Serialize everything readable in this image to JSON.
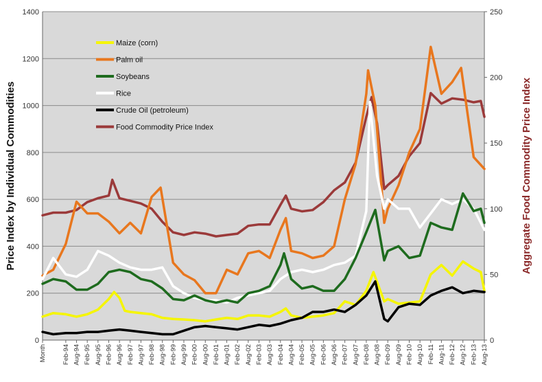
{
  "chart_data": {
    "type": "line",
    "title": "",
    "ylabel": "Price Index by Individual Commodities",
    "y2label": "Aggregate Food Commodity Price Index",
    "ylim": [
      0,
      1400
    ],
    "y2lim": [
      0,
      250
    ],
    "yticks": [
      0,
      200,
      400,
      600,
      800,
      1000,
      1200,
      1400
    ],
    "y2ticks": [
      0,
      50,
      100,
      150,
      200,
      250
    ],
    "x_start": "Jan-93",
    "x_end": "Aug-13",
    "x_first_label": "Month",
    "x_tick_labels": [
      "Month",
      "Feb-94",
      "Aug-94",
      "Feb-95",
      "Aug-95",
      "Feb-96",
      "Aug-96",
      "Feb-97",
      "Aug-97",
      "Feb-98",
      "Aug-98",
      "Feb-99",
      "Aug-99",
      "Feb-00",
      "Aug-00",
      "Feb-01",
      "Aug-01",
      "Feb-02",
      "Aug-02",
      "Feb-03",
      "Aug-03",
      "Feb-04",
      "Aug-04",
      "Feb-05",
      "Aug-05",
      "Feb-06",
      "Aug-06",
      "Feb-07",
      "Aug-07",
      "Feb-08",
      "Aug-08",
      "Feb-09",
      "Aug-09",
      "Feb-10",
      "Aug-10",
      "Feb-11",
      "Aug-11",
      "Feb-12",
      "Aug-12",
      "Feb-13",
      "Aug-13"
    ],
    "grid": "horizontal",
    "background": "#d9d9d9",
    "legend_position": "upper-left",
    "series": [
      {
        "name": "Maize (corn)",
        "axis": "left",
        "color": "#f5f500",
        "points": [
          [
            "Jan-93",
            100
          ],
          [
            "Jul-93",
            115
          ],
          [
            "Feb-94",
            110
          ],
          [
            "Aug-94",
            100
          ],
          [
            "Feb-95",
            110
          ],
          [
            "Aug-95",
            130
          ],
          [
            "Feb-96",
            175
          ],
          [
            "May-96",
            205
          ],
          [
            "Aug-96",
            180
          ],
          [
            "Nov-96",
            125
          ],
          [
            "Feb-97",
            120
          ],
          [
            "Aug-97",
            115
          ],
          [
            "Feb-98",
            110
          ],
          [
            "Aug-98",
            95
          ],
          [
            "Feb-99",
            90
          ],
          [
            "Aug-99",
            88
          ],
          [
            "Feb-00",
            85
          ],
          [
            "Aug-00",
            80
          ],
          [
            "Feb-01",
            88
          ],
          [
            "Aug-01",
            95
          ],
          [
            "Feb-02",
            90
          ],
          [
            "Aug-02",
            105
          ],
          [
            "Feb-03",
            105
          ],
          [
            "Aug-03",
            100
          ],
          [
            "Feb-04",
            120
          ],
          [
            "May-04",
            135
          ],
          [
            "Aug-04",
            105
          ],
          [
            "Feb-05",
            95
          ],
          [
            "Aug-05",
            100
          ],
          [
            "Feb-06",
            105
          ],
          [
            "Aug-06",
            115
          ],
          [
            "Feb-07",
            165
          ],
          [
            "Aug-07",
            150
          ],
          [
            "Feb-08",
            210
          ],
          [
            "Jun-08",
            290
          ],
          [
            "Dec-08",
            165
          ],
          [
            "Feb-09",
            175
          ],
          [
            "Aug-09",
            155
          ],
          [
            "Feb-10",
            160
          ],
          [
            "Aug-10",
            165
          ],
          [
            "Feb-11",
            280
          ],
          [
            "Aug-11",
            320
          ],
          [
            "Feb-12",
            275
          ],
          [
            "Aug-12",
            335
          ],
          [
            "Feb-13",
            305
          ],
          [
            "Jun-13",
            290
          ],
          [
            "Aug-13",
            210
          ]
        ]
      },
      {
        "name": "Palm oil",
        "axis": "left",
        "color": "#e8771e",
        "points": [
          [
            "Jan-93",
            275
          ],
          [
            "Jul-93",
            300
          ],
          [
            "Feb-94",
            410
          ],
          [
            "Aug-94",
            590
          ],
          [
            "Feb-95",
            540
          ],
          [
            "Aug-95",
            540
          ],
          [
            "Feb-96",
            505
          ],
          [
            "Aug-96",
            455
          ],
          [
            "Feb-97",
            500
          ],
          [
            "Aug-97",
            455
          ],
          [
            "Feb-98",
            610
          ],
          [
            "Jul-98",
            650
          ],
          [
            "Feb-99",
            330
          ],
          [
            "Aug-99",
            280
          ],
          [
            "Feb-00",
            255
          ],
          [
            "Aug-00",
            200
          ],
          [
            "Feb-01",
            200
          ],
          [
            "Aug-01",
            300
          ],
          [
            "Feb-02",
            280
          ],
          [
            "Aug-02",
            370
          ],
          [
            "Feb-03",
            380
          ],
          [
            "Aug-03",
            350
          ],
          [
            "Feb-04",
            470
          ],
          [
            "May-04",
            520
          ],
          [
            "Aug-04",
            380
          ],
          [
            "Feb-05",
            370
          ],
          [
            "Aug-05",
            350
          ],
          [
            "Feb-06",
            360
          ],
          [
            "Aug-06",
            400
          ],
          [
            "Feb-07",
            600
          ],
          [
            "Aug-07",
            750
          ],
          [
            "Feb-08",
            1050
          ],
          [
            "Mar-08",
            1150
          ],
          [
            "Jul-08",
            1000
          ],
          [
            "Dec-08",
            500
          ],
          [
            "Feb-09",
            560
          ],
          [
            "Aug-09",
            660
          ],
          [
            "Feb-10",
            800
          ],
          [
            "Aug-10",
            900
          ],
          [
            "Feb-11",
            1250
          ],
          [
            "Aug-11",
            1050
          ],
          [
            "Feb-12",
            1100
          ],
          [
            "Jul-12",
            1160
          ],
          [
            "Feb-13",
            780
          ],
          [
            "Aug-13",
            730
          ]
        ]
      },
      {
        "name": "Soybeans",
        "axis": "left",
        "color": "#1e6b1e",
        "points": [
          [
            "Jan-93",
            240
          ],
          [
            "Jul-93",
            260
          ],
          [
            "Feb-94",
            250
          ],
          [
            "Aug-94",
            215
          ],
          [
            "Feb-95",
            215
          ],
          [
            "Aug-95",
            240
          ],
          [
            "Feb-96",
            290
          ],
          [
            "Aug-96",
            300
          ],
          [
            "Feb-97",
            290
          ],
          [
            "Aug-97",
            260
          ],
          [
            "Feb-98",
            250
          ],
          [
            "Aug-98",
            220
          ],
          [
            "Feb-99",
            175
          ],
          [
            "Aug-99",
            170
          ],
          [
            "Feb-00",
            190
          ],
          [
            "Aug-00",
            170
          ],
          [
            "Feb-01",
            160
          ],
          [
            "Aug-01",
            170
          ],
          [
            "Feb-02",
            160
          ],
          [
            "Aug-02",
            200
          ],
          [
            "Feb-03",
            210
          ],
          [
            "Aug-03",
            230
          ],
          [
            "Feb-04",
            320
          ],
          [
            "Apr-04",
            370
          ],
          [
            "Aug-04",
            260
          ],
          [
            "Feb-05",
            220
          ],
          [
            "Aug-05",
            230
          ],
          [
            "Feb-06",
            210
          ],
          [
            "Aug-06",
            210
          ],
          [
            "Feb-07",
            260
          ],
          [
            "Aug-07",
            350
          ],
          [
            "Feb-08",
            460
          ],
          [
            "Jul-08",
            555
          ],
          [
            "Dec-08",
            340
          ],
          [
            "Feb-09",
            380
          ],
          [
            "Aug-09",
            400
          ],
          [
            "Feb-10",
            350
          ],
          [
            "Aug-10",
            360
          ],
          [
            "Feb-11",
            500
          ],
          [
            "Aug-11",
            480
          ],
          [
            "Feb-12",
            470
          ],
          [
            "Aug-12",
            625
          ],
          [
            "Feb-13",
            550
          ],
          [
            "Jun-13",
            560
          ],
          [
            "Aug-13",
            500
          ]
        ]
      },
      {
        "name": "Rice",
        "axis": "left",
        "color": "#ffffff",
        "points": [
          [
            "Jan-93",
            260
          ],
          [
            "Jul-93",
            350
          ],
          [
            "Feb-94",
            280
          ],
          [
            "Aug-94",
            270
          ],
          [
            "Feb-95",
            300
          ],
          [
            "Aug-95",
            380
          ],
          [
            "Feb-96",
            360
          ],
          [
            "Aug-96",
            330
          ],
          [
            "Feb-97",
            310
          ],
          [
            "Aug-97",
            300
          ],
          [
            "Feb-98",
            300
          ],
          [
            "Aug-98",
            310
          ],
          [
            "Feb-99",
            230
          ],
          [
            "Aug-99",
            200
          ],
          [
            "Feb-00",
            180
          ],
          [
            "Aug-00",
            170
          ],
          [
            "Feb-01",
            170
          ],
          [
            "Aug-01",
            160
          ],
          [
            "Feb-02",
            180
          ],
          [
            "Aug-02",
            190
          ],
          [
            "Feb-03",
            200
          ],
          [
            "Aug-03",
            210
          ],
          [
            "Feb-04",
            260
          ],
          [
            "Aug-04",
            290
          ],
          [
            "Feb-05",
            300
          ],
          [
            "Aug-05",
            290
          ],
          [
            "Feb-06",
            300
          ],
          [
            "Aug-06",
            320
          ],
          [
            "Feb-07",
            330
          ],
          [
            "Aug-07",
            360
          ],
          [
            "Feb-08",
            550
          ],
          [
            "Apr-08",
            1015
          ],
          [
            "Aug-08",
            700
          ],
          [
            "Dec-08",
            560
          ],
          [
            "Feb-09",
            600
          ],
          [
            "Aug-09",
            560
          ],
          [
            "Feb-10",
            560
          ],
          [
            "Aug-10",
            480
          ],
          [
            "Feb-11",
            540
          ],
          [
            "Aug-11",
            600
          ],
          [
            "Feb-12",
            580
          ],
          [
            "Aug-12",
            600
          ],
          [
            "Feb-13",
            560
          ],
          [
            "Aug-13",
            470
          ]
        ]
      },
      {
        "name": "Crude Oil (petroleum)",
        "axis": "left",
        "color": "#000000",
        "points": [
          [
            "Jan-93",
            35
          ],
          [
            "Jul-93",
            25
          ],
          [
            "Feb-94",
            30
          ],
          [
            "Aug-94",
            30
          ],
          [
            "Feb-95",
            35
          ],
          [
            "Aug-95",
            35
          ],
          [
            "Feb-96",
            40
          ],
          [
            "Aug-96",
            45
          ],
          [
            "Feb-97",
            40
          ],
          [
            "Aug-97",
            35
          ],
          [
            "Feb-98",
            30
          ],
          [
            "Aug-98",
            25
          ],
          [
            "Feb-99",
            25
          ],
          [
            "Aug-99",
            40
          ],
          [
            "Feb-00",
            55
          ],
          [
            "Aug-00",
            60
          ],
          [
            "Feb-01",
            55
          ],
          [
            "Aug-01",
            50
          ],
          [
            "Feb-02",
            45
          ],
          [
            "Aug-02",
            55
          ],
          [
            "Feb-03",
            65
          ],
          [
            "Aug-03",
            60
          ],
          [
            "Feb-04",
            70
          ],
          [
            "Aug-04",
            85
          ],
          [
            "Feb-05",
            95
          ],
          [
            "Aug-05",
            120
          ],
          [
            "Feb-06",
            120
          ],
          [
            "Aug-06",
            130
          ],
          [
            "Feb-07",
            120
          ],
          [
            "Aug-07",
            150
          ],
          [
            "Feb-08",
            190
          ],
          [
            "Jul-08",
            250
          ],
          [
            "Dec-08",
            90
          ],
          [
            "Feb-09",
            80
          ],
          [
            "Aug-09",
            140
          ],
          [
            "Feb-10",
            155
          ],
          [
            "Aug-10",
            150
          ],
          [
            "Feb-11",
            190
          ],
          [
            "Aug-11",
            210
          ],
          [
            "Feb-12",
            225
          ],
          [
            "Aug-12",
            200
          ],
          [
            "Feb-13",
            210
          ],
          [
            "Aug-13",
            205
          ]
        ]
      },
      {
        "name": "Food Commodity Price Index",
        "axis": "right",
        "color": "#9b3a3a",
        "points": [
          [
            "Jan-93",
            95
          ],
          [
            "Jul-93",
            97
          ],
          [
            "Feb-94",
            97
          ],
          [
            "Aug-94",
            99
          ],
          [
            "Feb-95",
            105
          ],
          [
            "Aug-95",
            108
          ],
          [
            "Feb-96",
            110
          ],
          [
            "Apr-96",
            122
          ],
          [
            "Aug-96",
            108
          ],
          [
            "Feb-97",
            106
          ],
          [
            "Aug-97",
            104
          ],
          [
            "Feb-98",
            100
          ],
          [
            "Aug-98",
            90
          ],
          [
            "Feb-99",
            82
          ],
          [
            "Aug-99",
            80
          ],
          [
            "Feb-00",
            82
          ],
          [
            "Aug-00",
            81
          ],
          [
            "Feb-01",
            79
          ],
          [
            "Aug-01",
            80
          ],
          [
            "Feb-02",
            81
          ],
          [
            "Aug-02",
            87
          ],
          [
            "Feb-03",
            88
          ],
          [
            "Aug-03",
            88
          ],
          [
            "Feb-04",
            103
          ],
          [
            "May-04",
            110
          ],
          [
            "Aug-04",
            100
          ],
          [
            "Feb-05",
            98
          ],
          [
            "Aug-05",
            99
          ],
          [
            "Feb-06",
            105
          ],
          [
            "Aug-06",
            114
          ],
          [
            "Feb-07",
            120
          ],
          [
            "Aug-07",
            135
          ],
          [
            "Feb-08",
            170
          ],
          [
            "May-08",
            185
          ],
          [
            "Aug-08",
            165
          ],
          [
            "Dec-08",
            115
          ],
          [
            "Feb-09",
            118
          ],
          [
            "Aug-09",
            125
          ],
          [
            "Feb-10",
            140
          ],
          [
            "Aug-10",
            150
          ],
          [
            "Feb-11",
            188
          ],
          [
            "Aug-11",
            180
          ],
          [
            "Feb-12",
            184
          ],
          [
            "Aug-12",
            183
          ],
          [
            "Feb-13",
            181
          ],
          [
            "Jun-13",
            182
          ],
          [
            "Aug-13",
            170
          ]
        ]
      }
    ]
  }
}
